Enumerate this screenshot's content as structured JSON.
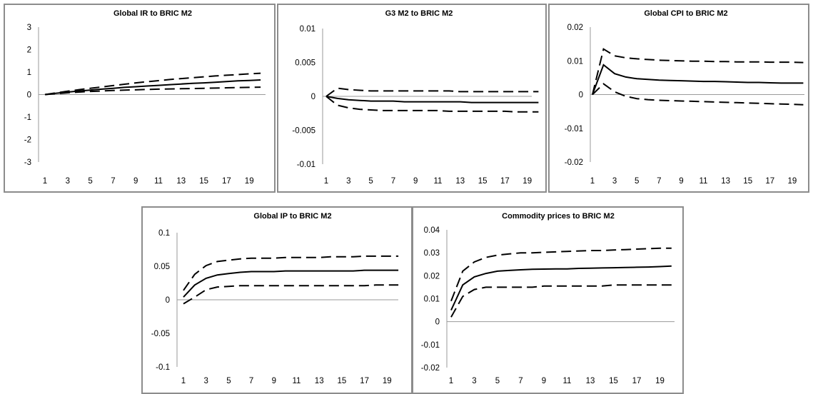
{
  "chart_data": [
    {
      "type": "line",
      "title": "Global IR to BRIC M2",
      "x": [
        1,
        2,
        3,
        4,
        5,
        6,
        7,
        8,
        9,
        10,
        11,
        12,
        13,
        14,
        15,
        16,
        17,
        18,
        19,
        20
      ],
      "x_tick_labels": [
        "1",
        "3",
        "5",
        "7",
        "9",
        "11",
        "13",
        "15",
        "17",
        "19"
      ],
      "y_tick_labels": [
        "3",
        "2",
        "1",
        "0",
        "-1",
        "-2",
        "-3"
      ],
      "ylim": [
        -3,
        3
      ],
      "grid": false,
      "series": [
        {
          "style": "dashed",
          "values": [
            0,
            0.08,
            0.15,
            0.22,
            0.28,
            0.34,
            0.4,
            0.46,
            0.52,
            0.57,
            0.62,
            0.67,
            0.71,
            0.75,
            0.79,
            0.83,
            0.86,
            0.89,
            0.92,
            0.95
          ]
        },
        {
          "style": "solid",
          "values": [
            0,
            0.06,
            0.11,
            0.16,
            0.2,
            0.24,
            0.28,
            0.32,
            0.35,
            0.38,
            0.41,
            0.44,
            0.47,
            0.5,
            0.52,
            0.55,
            0.58,
            0.61,
            0.63,
            0.65
          ]
        },
        {
          "style": "dashed",
          "values": [
            0,
            0.04,
            0.08,
            0.11,
            0.14,
            0.16,
            0.18,
            0.2,
            0.21,
            0.23,
            0.24,
            0.25,
            0.26,
            0.27,
            0.28,
            0.29,
            0.3,
            0.31,
            0.32,
            0.33
          ]
        }
      ]
    },
    {
      "type": "line",
      "title": "G3 M2  to BRIC M2",
      "x": [
        1,
        2,
        3,
        4,
        5,
        6,
        7,
        8,
        9,
        10,
        11,
        12,
        13,
        14,
        15,
        16,
        17,
        18,
        19,
        20
      ],
      "x_tick_labels": [
        "1",
        "3",
        "5",
        "7",
        "9",
        "11",
        "13",
        "15",
        "17",
        "19"
      ],
      "y_tick_labels": [
        "0.01",
        "0.005",
        "0",
        "-0.005",
        "-0.01"
      ],
      "ylim": [
        -0.01,
        0.01
      ],
      "grid": false,
      "series": [
        {
          "style": "dashed",
          "values": [
            0,
            0.0012,
            0.001,
            0.0009,
            0.0008,
            0.0008,
            0.0008,
            0.0008,
            0.0008,
            0.0008,
            0.0008,
            0.0008,
            0.0007,
            0.0007,
            0.0007,
            0.0007,
            0.0007,
            0.0007,
            0.0007,
            0.0007
          ]
        },
        {
          "style": "solid",
          "values": [
            0,
            -0.0003,
            -0.0005,
            -0.0006,
            -0.0007,
            -0.0007,
            -0.0007,
            -0.0008,
            -0.0008,
            -0.0008,
            -0.0008,
            -0.0008,
            -0.0008,
            -0.0009,
            -0.0009,
            -0.0009,
            -0.0009,
            -0.0009,
            -0.0009,
            -0.0009
          ]
        },
        {
          "style": "dashed",
          "values": [
            0,
            -0.0013,
            -0.0017,
            -0.0019,
            -0.002,
            -0.0021,
            -0.0021,
            -0.0021,
            -0.0021,
            -0.0021,
            -0.0021,
            -0.0022,
            -0.0022,
            -0.0022,
            -0.0022,
            -0.0022,
            -0.0022,
            -0.0023,
            -0.0023,
            -0.0023
          ]
        }
      ]
    },
    {
      "type": "line",
      "title": "Global CPI to BRIC M2",
      "x": [
        1,
        2,
        3,
        4,
        5,
        6,
        7,
        8,
        9,
        10,
        11,
        12,
        13,
        14,
        15,
        16,
        17,
        18,
        19,
        20
      ],
      "x_tick_labels": [
        "1",
        "3",
        "5",
        "7",
        "9",
        "11",
        "13",
        "15",
        "17",
        "19"
      ],
      "y_tick_labels": [
        "0.02",
        "0.01",
        "0",
        "-0.01",
        "-0.02"
      ],
      "ylim": [
        -0.02,
        0.02
      ],
      "grid": false,
      "series": [
        {
          "style": "dashed",
          "values": [
            0,
            0.0135,
            0.0115,
            0.0109,
            0.0106,
            0.0104,
            0.0102,
            0.0101,
            0.01,
            0.0099,
            0.0099,
            0.0098,
            0.0098,
            0.0097,
            0.0097,
            0.0097,
            0.0096,
            0.0096,
            0.0096,
            0.0095
          ]
        },
        {
          "style": "solid",
          "values": [
            0,
            0.0088,
            0.0062,
            0.0052,
            0.0047,
            0.0045,
            0.0043,
            0.0042,
            0.0041,
            0.004,
            0.0039,
            0.0039,
            0.0038,
            0.0037,
            0.0036,
            0.0036,
            0.0035,
            0.0034,
            0.0034,
            0.0034
          ]
        },
        {
          "style": "dashed",
          "values": [
            0,
            0.0032,
            0.0008,
            -0.0005,
            -0.0012,
            -0.0015,
            -0.0017,
            -0.0018,
            -0.0019,
            -0.002,
            -0.0021,
            -0.0022,
            -0.0023,
            -0.0024,
            -0.0025,
            -0.0026,
            -0.0027,
            -0.0028,
            -0.0029,
            -0.003
          ]
        }
      ]
    },
    {
      "type": "line",
      "title": "Global IP to BRIC M2",
      "x": [
        1,
        2,
        3,
        4,
        5,
        6,
        7,
        8,
        9,
        10,
        11,
        12,
        13,
        14,
        15,
        16,
        17,
        18,
        19,
        20
      ],
      "x_tick_labels": [
        "1",
        "3",
        "5",
        "7",
        "9",
        "11",
        "13",
        "15",
        "17",
        "19"
      ],
      "y_tick_labels": [
        "0.1",
        "0.05",
        "0",
        "-0.05",
        "-0.1"
      ],
      "ylim": [
        -0.1,
        0.1
      ],
      "grid": false,
      "series": [
        {
          "style": "dashed",
          "values": [
            0.014,
            0.038,
            0.051,
            0.057,
            0.059,
            0.061,
            0.062,
            0.062,
            0.062,
            0.063,
            0.063,
            0.063,
            0.063,
            0.064,
            0.064,
            0.064,
            0.065,
            0.065,
            0.065,
            0.065
          ]
        },
        {
          "style": "solid",
          "values": [
            0.004,
            0.022,
            0.032,
            0.037,
            0.039,
            0.041,
            0.042,
            0.042,
            0.042,
            0.043,
            0.043,
            0.043,
            0.043,
            0.043,
            0.043,
            0.043,
            0.044,
            0.044,
            0.044,
            0.044
          ]
        },
        {
          "style": "dashed",
          "values": [
            -0.006,
            0.004,
            0.015,
            0.019,
            0.02,
            0.021,
            0.021,
            0.021,
            0.021,
            0.021,
            0.021,
            0.021,
            0.021,
            0.021,
            0.021,
            0.021,
            0.021,
            0.022,
            0.022,
            0.022
          ]
        }
      ]
    },
    {
      "type": "line",
      "title": "Commodity prices  to BRIC M2",
      "x": [
        1,
        2,
        3,
        4,
        5,
        6,
        7,
        8,
        9,
        10,
        11,
        12,
        13,
        14,
        15,
        16,
        17,
        18,
        19,
        20
      ],
      "x_tick_labels": [
        "1",
        "3",
        "5",
        "7",
        "9",
        "11",
        "13",
        "15",
        "17",
        "19"
      ],
      "y_tick_labels": [
        "0.04",
        "0.03",
        "0.02",
        "0.01",
        "0",
        "-0.01",
        "-0.02"
      ],
      "ylim": [
        -0.02,
        0.04
      ],
      "grid": false,
      "series": [
        {
          "style": "dashed",
          "values": [
            0.009,
            0.022,
            0.026,
            0.028,
            0.029,
            0.0295,
            0.03,
            0.03,
            0.0302,
            0.0304,
            0.0306,
            0.0308,
            0.031,
            0.031,
            0.0312,
            0.0314,
            0.0316,
            0.0318,
            0.032,
            0.032
          ]
        },
        {
          "style": "solid",
          "values": [
            0.005,
            0.016,
            0.0195,
            0.021,
            0.022,
            0.0223,
            0.0226,
            0.0228,
            0.0229,
            0.023,
            0.023,
            0.0232,
            0.0233,
            0.0234,
            0.0235,
            0.0236,
            0.0237,
            0.0238,
            0.024,
            0.0242
          ]
        },
        {
          "style": "dashed",
          "values": [
            0.002,
            0.011,
            0.014,
            0.015,
            0.015,
            0.015,
            0.015,
            0.015,
            0.0155,
            0.0155,
            0.0155,
            0.0155,
            0.0155,
            0.0155,
            0.016,
            0.016,
            0.016,
            0.016,
            0.016,
            0.016
          ]
        }
      ]
    }
  ]
}
